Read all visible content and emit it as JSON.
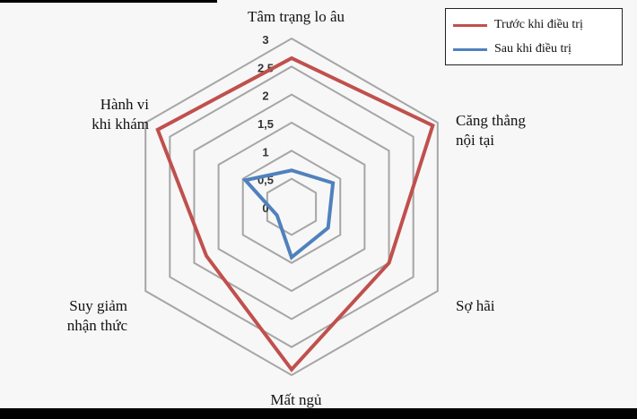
{
  "chart_data": {
    "type": "radar",
    "categories": [
      "Tâm trạng lo âu",
      "Căng thẳng\nnội tại",
      "Sợ hãi",
      "Mất ngủ",
      "Suy giảm\nnhận thức",
      "Hành vi\nkhi khám"
    ],
    "rlim": [
      0,
      3
    ],
    "ticks": [
      "0",
      "0,5",
      "1",
      "1,5",
      "2",
      "2,5",
      "3"
    ],
    "grid": true,
    "legend_position": "top-right",
    "series": [
      {
        "name": "Trước khi điều trị",
        "color": "#c0504d",
        "values": [
          2.65,
          2.9,
          2.0,
          2.9,
          1.75,
          2.75
        ]
      },
      {
        "name": "Sau khi điều trị",
        "color": "#4f81bd",
        "values": [
          0.65,
          0.85,
          0.75,
          0.9,
          0.3,
          0.95
        ]
      }
    ]
  }
}
